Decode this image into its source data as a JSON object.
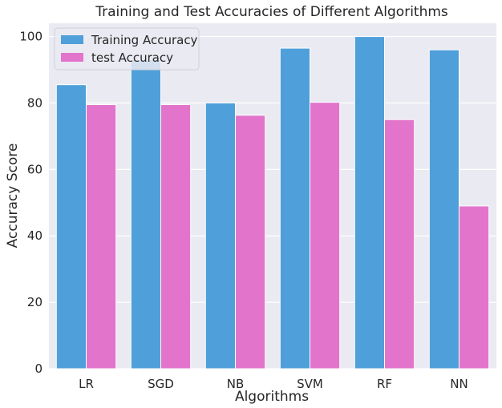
{
  "chart_data": {
    "type": "bar",
    "title": "Training and Test Accuracies of Different Algorithms",
    "xlabel": "Algorithms",
    "ylabel": "Accuracy Score",
    "categories": [
      "LR",
      "SGD",
      "NB",
      "SVM",
      "RF",
      "NN"
    ],
    "series": [
      {
        "name": "Training Accuracy",
        "color": "#4fa0da",
        "values": [
          85.5,
          93.0,
          80.0,
          96.5,
          100.0,
          96.0
        ]
      },
      {
        "name": "test Accuracy",
        "color": "#e275cb",
        "values": [
          79.5,
          79.5,
          76.3,
          80.2,
          75.0,
          49.0
        ]
      }
    ],
    "ylim": [
      0,
      104
    ],
    "yticks": [
      "0",
      "20",
      "40",
      "60",
      "80",
      "100"
    ],
    "grid": true,
    "legend_position": "top-left",
    "background": "#eaeaf2"
  }
}
